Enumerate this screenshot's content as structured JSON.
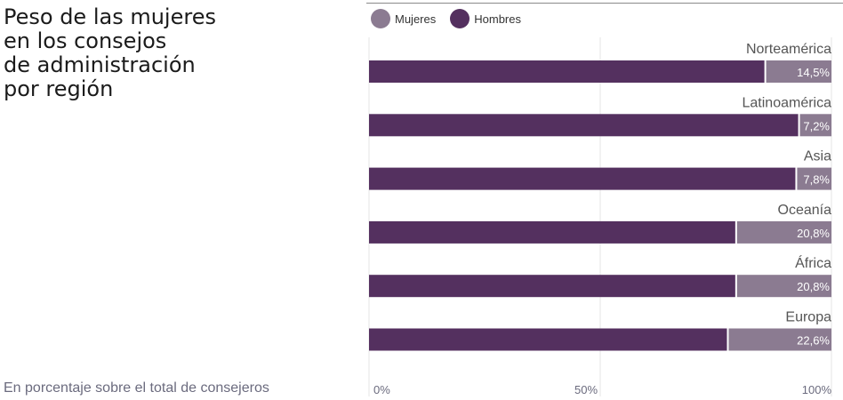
{
  "title": "Peso de las mujeres\nen los consejos\nde administración\npor región",
  "subtitle": "En porcentaje sobre el total de consejeros",
  "colors": {
    "women": "#8b7b91",
    "men": "#54305f",
    "grid": "#e6e6e6",
    "axis_text": "#6b6b7e",
    "label_text": "#555555",
    "value_text": "#ffffff"
  },
  "chart_data": {
    "type": "bar",
    "orientation": "horizontal",
    "stacked": true,
    "categories": [
      "Norteamérica",
      "Latinoamérica",
      "Asia",
      "Oceanía",
      "África",
      "Europa"
    ],
    "series": [
      {
        "name": "Mujeres",
        "values": [
          14.5,
          7.2,
          7.8,
          20.8,
          20.8,
          22.6
        ],
        "labels": [
          "14,5%",
          "7,2%",
          "7,8%",
          "20,8%",
          "20,8%",
          "22,6%"
        ]
      },
      {
        "name": "Hombres",
        "values": [
          85.5,
          92.8,
          92.2,
          79.2,
          79.2,
          77.4
        ]
      }
    ],
    "xlim": [
      0,
      100
    ],
    "xticks": [
      0,
      50,
      100
    ],
    "xtick_labels": [
      "0%",
      "50%",
      "100%"
    ],
    "legend_position": "top-left",
    "grid": true
  }
}
